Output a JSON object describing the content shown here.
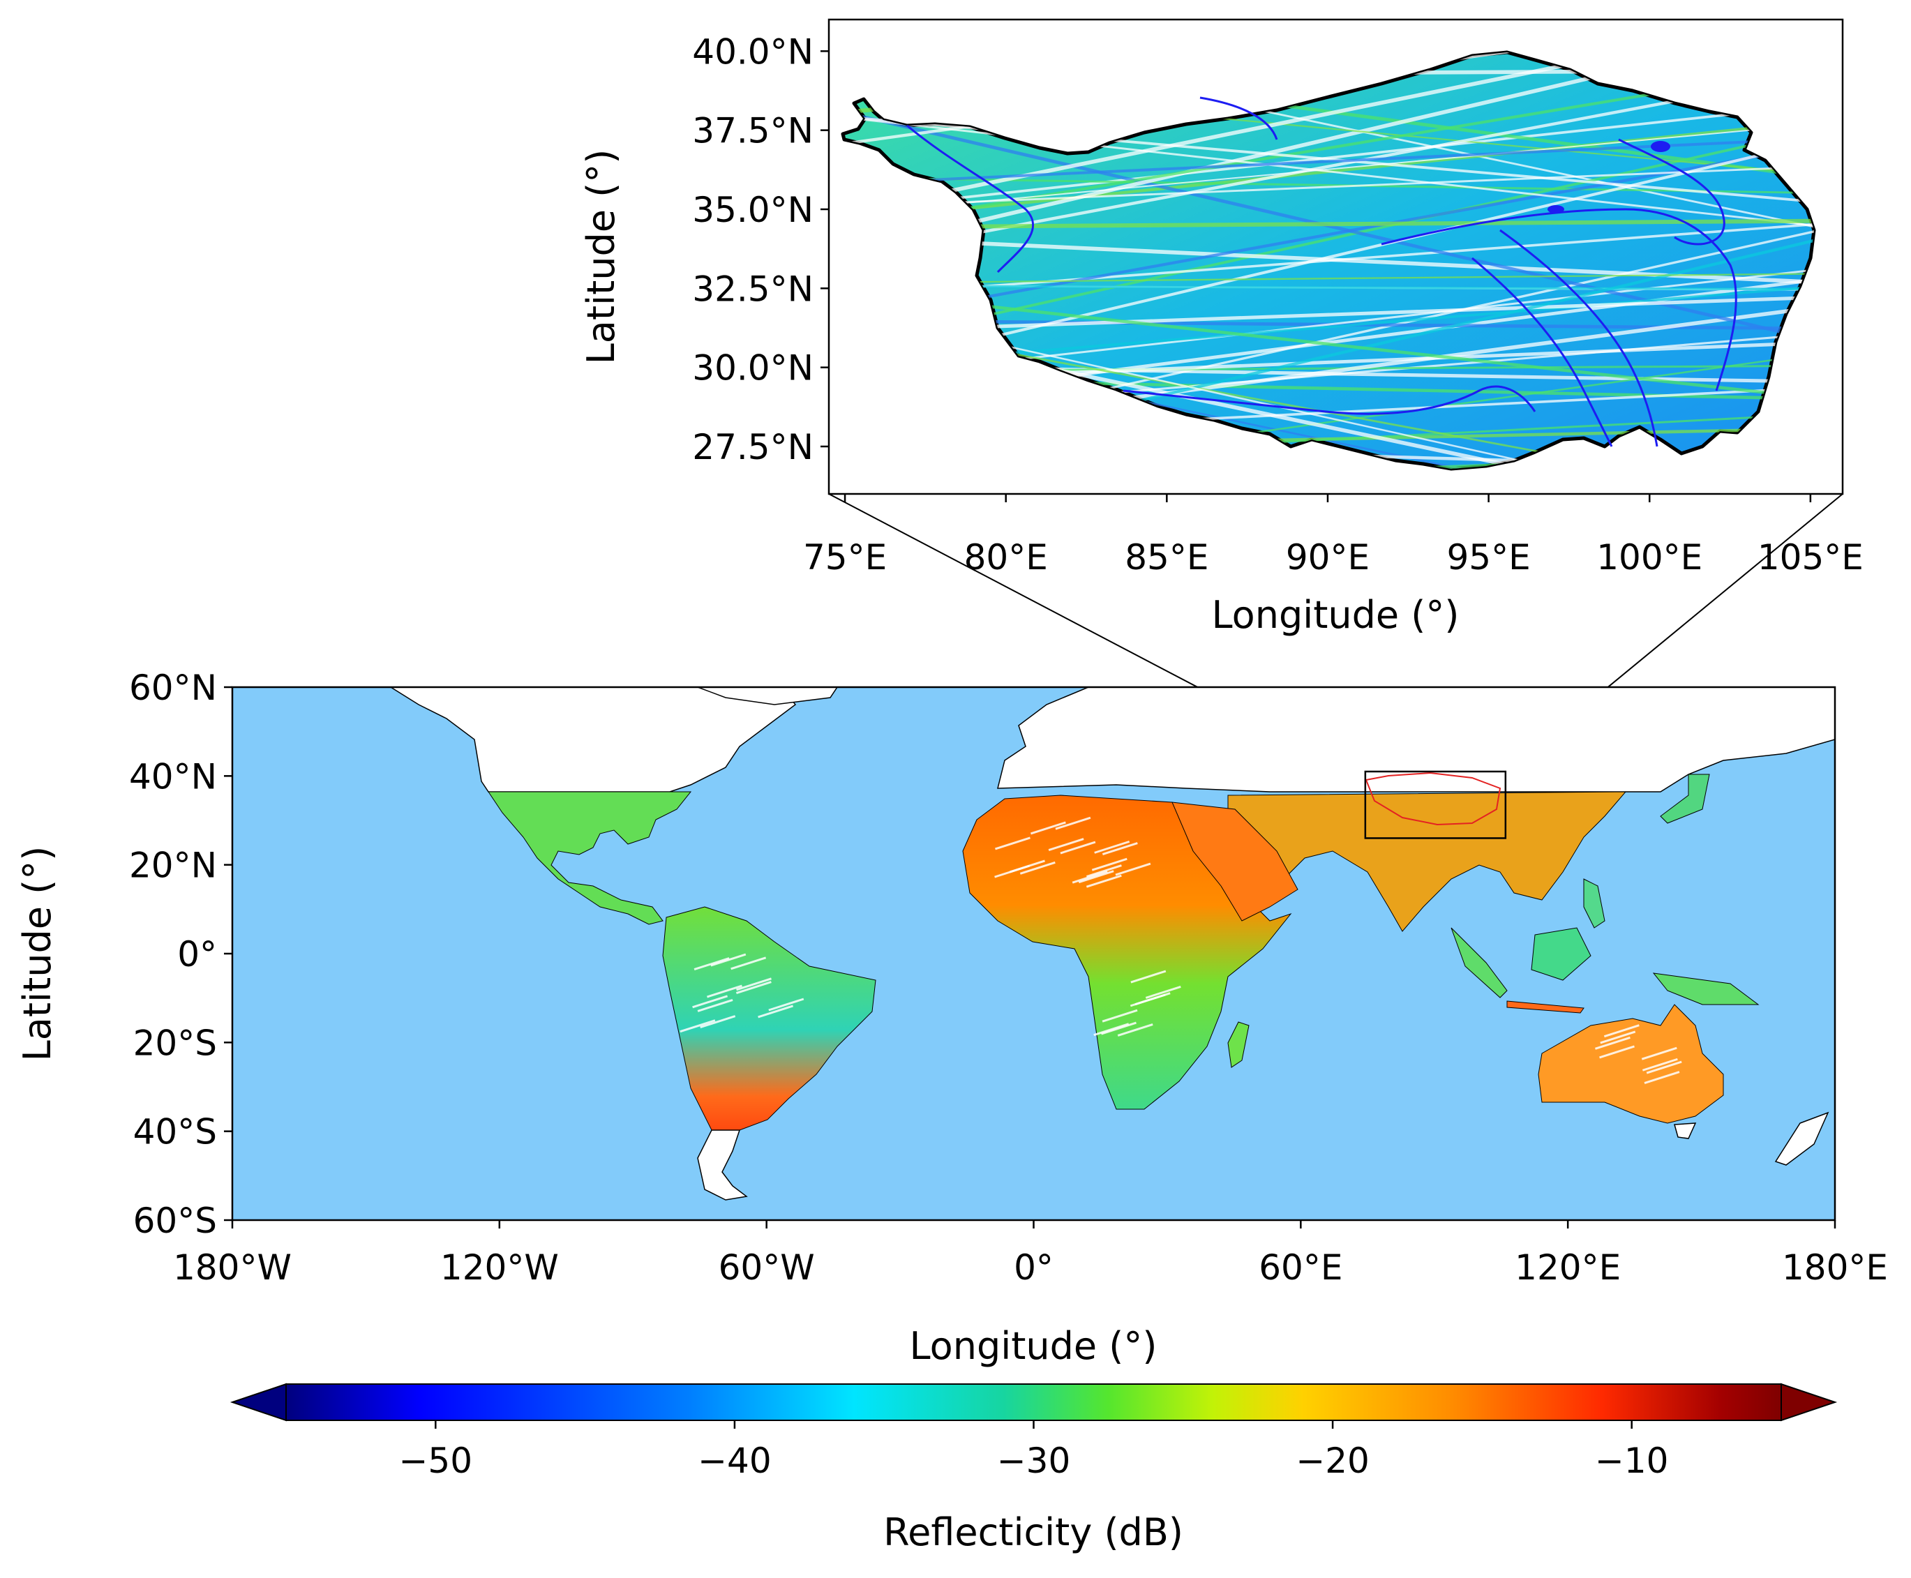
{
  "inset_map": {
    "region": "Tibetan Plateau",
    "xlabel": "Longitude (°)",
    "ylabel": "Latitude (°)",
    "lon_range": [
      74.5,
      106
    ],
    "lat_range": [
      26,
      41
    ],
    "lon_ticks": [
      {
        "value": 75,
        "label": "75°E"
      },
      {
        "value": 80,
        "label": "80°E"
      },
      {
        "value": 85,
        "label": "85°E"
      },
      {
        "value": 90,
        "label": "90°E"
      },
      {
        "value": 95,
        "label": "95°E"
      },
      {
        "value": 100,
        "label": "100°E"
      },
      {
        "value": 105,
        "label": "105°E"
      }
    ],
    "lat_ticks": [
      {
        "value": 27.5,
        "label": "27.5°N"
      },
      {
        "value": 30.0,
        "label": "30.0°N"
      },
      {
        "value": 32.5,
        "label": "32.5°N"
      },
      {
        "value": 35.0,
        "label": "35.0°N"
      },
      {
        "value": 37.5,
        "label": "37.5°N"
      },
      {
        "value": 40.0,
        "label": "40.0°N"
      }
    ]
  },
  "global_map": {
    "xlabel": "Longitude (°)",
    "ylabel": "Latitude (°)",
    "lon_range": [
      -180,
      180
    ],
    "lat_range": [
      -60,
      60
    ],
    "data_coverage_lat": [
      -38,
      38
    ],
    "highlight_box": {
      "lon": [
        74.5,
        106
      ],
      "lat": [
        26,
        41
      ]
    },
    "lon_ticks": [
      {
        "value": -180,
        "label": "180°W"
      },
      {
        "value": -120,
        "label": "120°W"
      },
      {
        "value": -60,
        "label": "60°W"
      },
      {
        "value": 0,
        "label": "0°"
      },
      {
        "value": 60,
        "label": "60°E"
      },
      {
        "value": 120,
        "label": "120°E"
      },
      {
        "value": 180,
        "label": "180°E"
      }
    ],
    "lat_ticks": [
      {
        "value": 60,
        "label": "60°N"
      },
      {
        "value": 40,
        "label": "40°N"
      },
      {
        "value": 20,
        "label": "20°N"
      },
      {
        "value": 0,
        "label": "0°"
      },
      {
        "value": -20,
        "label": "20°S"
      },
      {
        "value": -40,
        "label": "40°S"
      },
      {
        "value": -60,
        "label": "60°S"
      }
    ]
  },
  "colorbar": {
    "label": "Reflecticity (dB)",
    "range": [
      -55,
      -5
    ],
    "extend": "both",
    "ticks": [
      {
        "value": -50,
        "label": "−50"
      },
      {
        "value": -40,
        "label": "−40"
      },
      {
        "value": -30,
        "label": "−30"
      },
      {
        "value": -20,
        "label": "−20"
      },
      {
        "value": -10,
        "label": "−10"
      }
    ]
  },
  "colors": {
    "ocean": "#82cbfa",
    "land": "#ffffff",
    "river": "#1d1df2",
    "plateau_outline": "#000000",
    "plateau_outline_global": "#e32222",
    "colormap": [
      "#00007f",
      "#0000ff",
      "#007fff",
      "#00e5ff",
      "#17d5a0",
      "#55e62e",
      "#c2f207",
      "#ffd100",
      "#ff8c00",
      "#ff2a00",
      "#a30000",
      "#7f0000"
    ]
  }
}
